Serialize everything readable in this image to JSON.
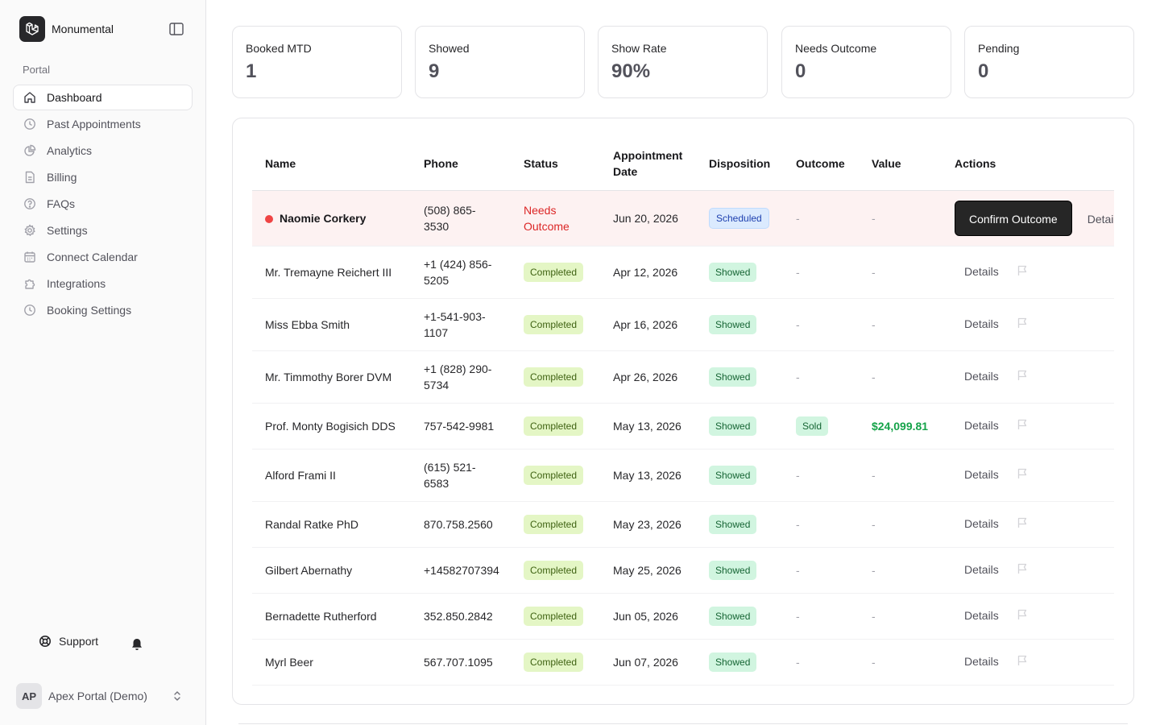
{
  "sidebar": {
    "brand": "Monumental",
    "section_label": "Portal",
    "items": [
      {
        "label": "Dashboard",
        "icon": "home-icon",
        "active": true
      },
      {
        "label": "Past Appointments",
        "icon": "clock-icon"
      },
      {
        "label": "Analytics",
        "icon": "chart-pie-icon"
      },
      {
        "label": "Billing",
        "icon": "document-icon"
      },
      {
        "label": "FAQs",
        "icon": "question-icon"
      },
      {
        "label": "Settings",
        "icon": "gear-icon"
      },
      {
        "label": "Connect Calendar",
        "icon": "calendar-icon"
      },
      {
        "label": "Integrations",
        "icon": "puzzle-icon"
      },
      {
        "label": "Booking Settings",
        "icon": "clock-icon"
      }
    ],
    "support_label": "Support",
    "account": {
      "initials": "AP",
      "name": "Apex Portal (Demo)"
    }
  },
  "stats": [
    {
      "label": "Booked MTD",
      "value": "1"
    },
    {
      "label": "Showed",
      "value": "9"
    },
    {
      "label": "Show Rate",
      "value": "90%"
    },
    {
      "label": "Needs Outcome",
      "value": "0"
    },
    {
      "label": "Pending",
      "value": "0"
    }
  ],
  "table": {
    "headers": {
      "name": "Name",
      "phone": "Phone",
      "status": "Status",
      "appointment_date": "Appointment Date",
      "disposition": "Disposition",
      "outcome": "Outcome",
      "value": "Value",
      "actions": "Actions"
    },
    "confirm_label": "Confirm Outcome",
    "details_label": "Details",
    "empty": "-",
    "rows": [
      {
        "name": "Naomie Corkery",
        "phone": "(508) 865-3530",
        "status": "Needs Outcome",
        "date": "Jun 20, 2026",
        "disposition": "Scheduled",
        "outcome": "-",
        "value": "-"
      },
      {
        "name": "Mr. Tremayne Reichert III",
        "phone": "+1 (424) 856-5205",
        "status": "Completed",
        "date": "Apr 12, 2026",
        "disposition": "Showed",
        "outcome": "-",
        "value": "-"
      },
      {
        "name": "Miss Ebba Smith",
        "phone": "+1-541-903-1107",
        "status": "Completed",
        "date": "Apr 16, 2026",
        "disposition": "Showed",
        "outcome": "-",
        "value": "-"
      },
      {
        "name": "Mr. Timmothy Borer DVM",
        "phone": "+1 (828) 290-5734",
        "status": "Completed",
        "date": "Apr 26, 2026",
        "disposition": "Showed",
        "outcome": "-",
        "value": "-"
      },
      {
        "name": "Prof. Monty Bogisich DDS",
        "phone": "757-542-9981",
        "status": "Completed",
        "date": "May 13, 2026",
        "disposition": "Showed",
        "outcome": "Sold",
        "value": "$24,099.81"
      },
      {
        "name": "Alford Frami II",
        "phone": "(615) 521-6583",
        "status": "Completed",
        "date": "May 13, 2026",
        "disposition": "Showed",
        "outcome": "-",
        "value": "-"
      },
      {
        "name": "Randal Ratke PhD",
        "phone": "870.758.2560",
        "status": "Completed",
        "date": "May 23, 2026",
        "disposition": "Showed",
        "outcome": "-",
        "value": "-"
      },
      {
        "name": "Gilbert Abernathy",
        "phone": "+14582707394",
        "status": "Completed",
        "date": "May 25, 2026",
        "disposition": "Showed",
        "outcome": "-",
        "value": "-"
      },
      {
        "name": "Bernadette Rutherford",
        "phone": "352.850.2842",
        "status": "Completed",
        "date": "Jun 05, 2026",
        "disposition": "Showed",
        "outcome": "-",
        "value": "-"
      },
      {
        "name": "Myrl Beer",
        "phone": "567.707.1095",
        "status": "Completed",
        "date": "Jun 07, 2026",
        "disposition": "Showed",
        "outcome": "-",
        "value": "-"
      }
    ]
  }
}
